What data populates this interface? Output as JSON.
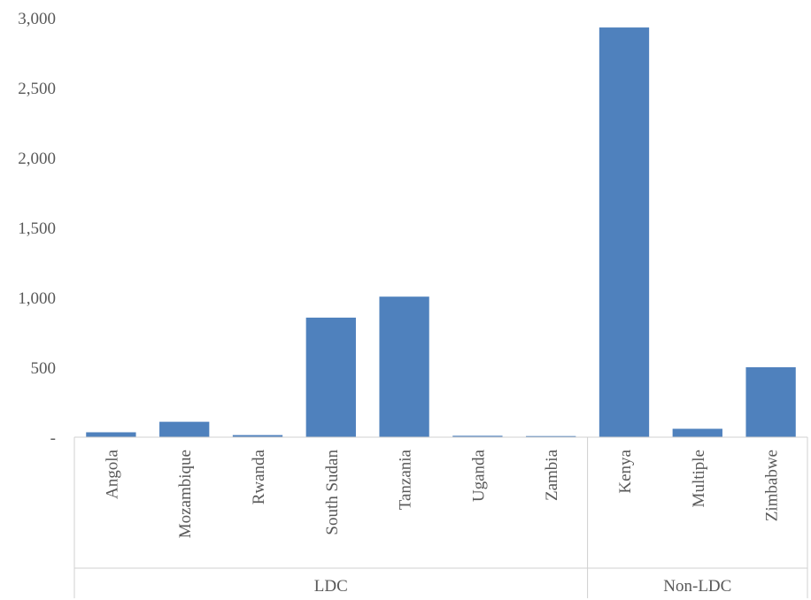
{
  "chart_data": {
    "type": "bar",
    "categories": [
      "Angola",
      "Mozambique",
      "Rwanda",
      "South Sudan",
      "Tanzania",
      "Uganda",
      "Zambia",
      "Kenya",
      "Multiple",
      "Zimbabwe"
    ],
    "groups": [
      {
        "label": "LDC",
        "categories": [
          "Angola",
          "Mozambique",
          "Rwanda",
          "South Sudan",
          "Tanzania",
          "Uganda",
          "Zambia"
        ]
      },
      {
        "label": "Non-LDC",
        "categories": [
          "Kenya",
          "Multiple",
          "Zimbabwe"
        ]
      }
    ],
    "values": [
      35,
      110,
      15,
      855,
      1005,
      10,
      8,
      2930,
      60,
      500
    ],
    "ylim": [
      0,
      3000
    ],
    "yticks": [
      0,
      500,
      1000,
      1500,
      2000,
      2500,
      3000
    ],
    "ytick_labels": [
      "-",
      "500",
      "1,000",
      "1,500",
      "2,000",
      "2,500",
      "3,000"
    ],
    "bar_color": "#4F81BD",
    "grid": false,
    "legend": "none"
  }
}
